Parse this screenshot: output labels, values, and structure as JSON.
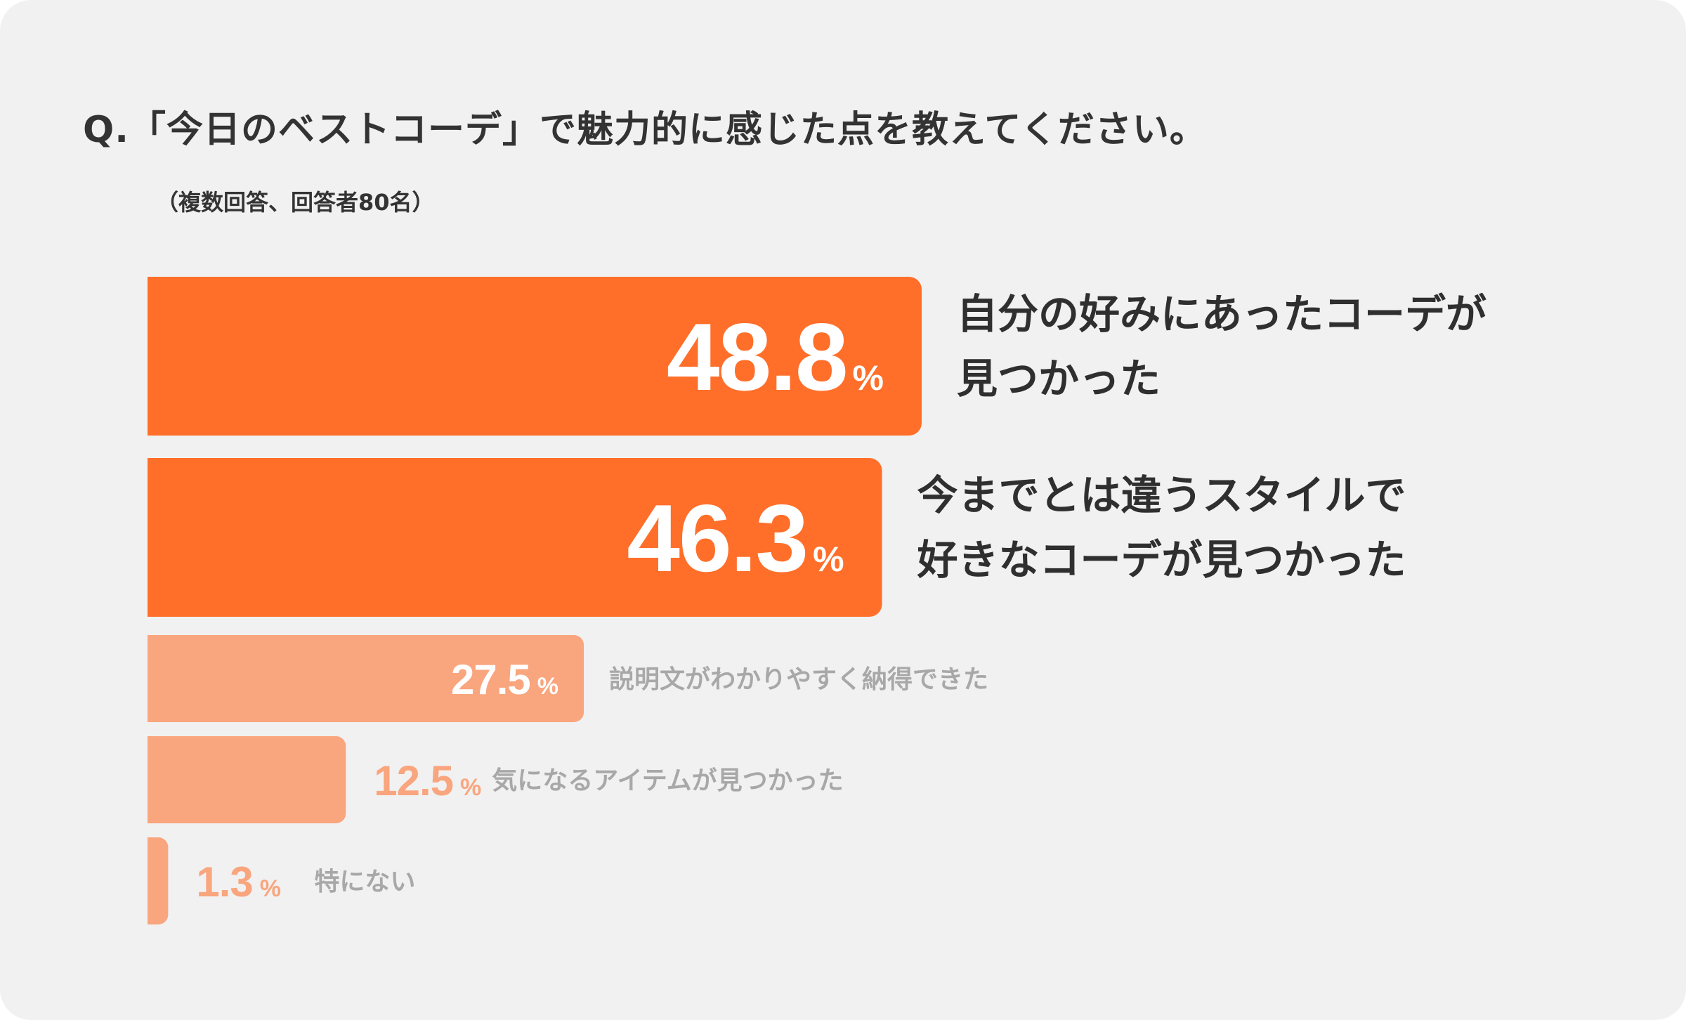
{
  "question": "Q.「今日のベストコーデ」で魅力的に感じた点を教えてください。",
  "note": "（複数回答、回答者80名）",
  "colors": {
    "background": "#f1f1f1",
    "primary_bar": "#ff6f2a",
    "secondary_bar": "#f9a57e",
    "primary_label": "#2f2f2f",
    "secondary_label": "#a8a8a8",
    "value_text_on_bar": "#ffffff"
  },
  "chart_data": {
    "type": "bar",
    "orientation": "horizontal",
    "unit": "%",
    "categories": [
      "自分の好みにあったコーデが見つかった",
      "今までとは違うスタイルで好きなコーデが見つかった",
      "説明文がわかりやすく納得できた",
      "気になるアイテムが見つかった",
      "特にない"
    ],
    "category_lines": [
      [
        "自分の好みにあったコーデが",
        "見つかった"
      ],
      [
        "今までとは違うスタイルで",
        "好きなコーデが見つかった"
      ],
      [
        "説明文がわかりやすく納得できた"
      ],
      [
        "気になるアイテムが見つかった"
      ],
      [
        "特にない"
      ]
    ],
    "value_labels": [
      "48.8",
      "46.3",
      "27.5",
      "12.5",
      "1.3"
    ],
    "values": [
      48.8,
      46.3,
      27.5,
      12.5,
      1.3
    ],
    "highlighted": [
      true,
      true,
      false,
      false,
      false
    ],
    "xlim": [
      0,
      70
    ],
    "grid": false,
    "legend": "none"
  }
}
